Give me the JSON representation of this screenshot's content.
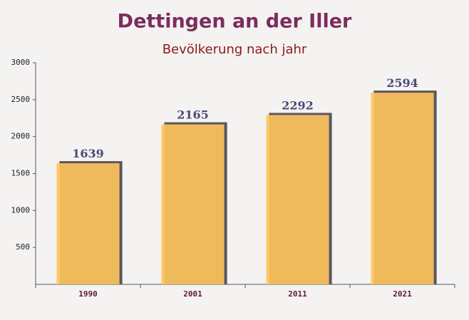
{
  "chart_data": {
    "type": "bar",
    "title": "Dettingen an der Iller",
    "subtitle": "Bevölkerung nach jahr",
    "categories": [
      "1990",
      "2001",
      "2011",
      "2021"
    ],
    "values": [
      1639,
      2165,
      2292,
      2594
    ],
    "color": "#ffc55c",
    "ylim": [
      0,
      3000
    ],
    "yticks": [
      500,
      1000,
      1500,
      2000,
      2500,
      3000
    ]
  }
}
